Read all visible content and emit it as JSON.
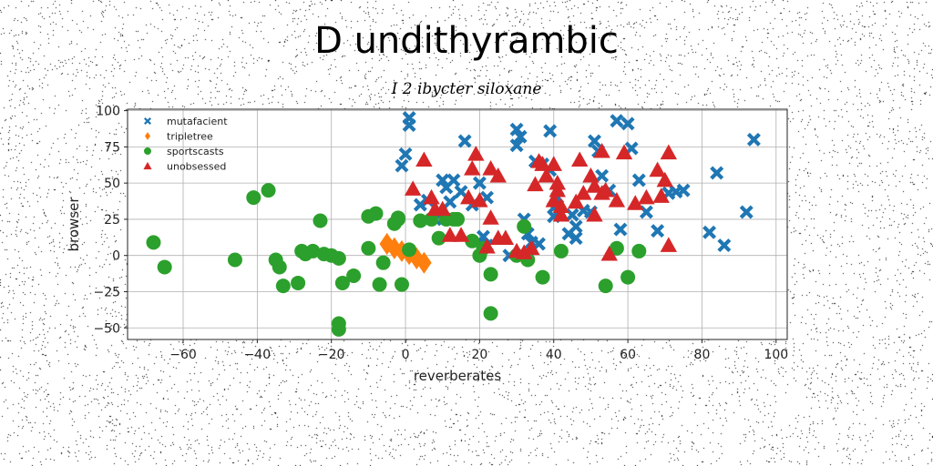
{
  "title": "D undithyrambic",
  "subtitle": "I 2 ibycter siloxane",
  "chart_data": {
    "type": "scatter",
    "xlabel": "reverberates",
    "ylabel": "browser",
    "xlim": [
      -75,
      103
    ],
    "ylim": [
      -58,
      101
    ],
    "xticks": [
      -60,
      -40,
      -20,
      0,
      20,
      40,
      60,
      80,
      100
    ],
    "yticks": [
      100,
      75,
      50,
      25,
      0,
      -25,
      -50
    ],
    "xtick_labels": [
      "−60",
      "−40",
      "−20",
      "0",
      "20",
      "40",
      "60",
      "80",
      "100"
    ],
    "ytick_labels": [
      "100",
      "75",
      "50",
      "25",
      "0",
      "−25",
      "−50"
    ],
    "grid": true,
    "legend_position": "top-left",
    "series": [
      {
        "name": "mutafacient",
        "color": "#1f77b4",
        "marker": "x",
        "points": [
          [
            1,
            95
          ],
          [
            1,
            90
          ],
          [
            0,
            70
          ],
          [
            -1,
            62
          ],
          [
            4,
            35
          ],
          [
            6,
            38
          ],
          [
            8,
            25
          ],
          [
            10,
            52
          ],
          [
            11,
            47
          ],
          [
            13,
            52
          ],
          [
            12,
            37
          ],
          [
            16,
            79
          ],
          [
            15,
            44
          ],
          [
            20,
            50
          ],
          [
            22,
            40
          ],
          [
            18,
            35
          ],
          [
            21,
            13
          ],
          [
            22,
            7
          ],
          [
            28,
            0
          ],
          [
            30,
            87
          ],
          [
            31,
            82
          ],
          [
            30,
            76
          ],
          [
            32,
            25
          ],
          [
            33,
            15
          ],
          [
            34,
            9
          ],
          [
            36,
            8
          ],
          [
            35,
            65
          ],
          [
            37,
            63
          ],
          [
            39,
            59
          ],
          [
            39,
            86
          ],
          [
            40,
            33
          ],
          [
            40,
            27
          ],
          [
            41,
            40
          ],
          [
            44,
            15
          ],
          [
            45,
            28
          ],
          [
            46,
            20
          ],
          [
            46,
            12
          ],
          [
            48,
            31
          ],
          [
            51,
            79
          ],
          [
            52,
            72
          ],
          [
            53,
            55
          ],
          [
            55,
            45
          ],
          [
            57,
            93
          ],
          [
            58,
            18
          ],
          [
            60,
            91
          ],
          [
            61,
            74
          ],
          [
            63,
            52
          ],
          [
            65,
            30
          ],
          [
            68,
            17
          ],
          [
            71,
            43
          ],
          [
            73,
            44
          ],
          [
            75,
            45
          ],
          [
            82,
            16
          ],
          [
            84,
            57
          ],
          [
            86,
            7
          ],
          [
            92,
            30
          ],
          [
            94,
            80
          ],
          [
            50,
            30
          ]
        ]
      },
      {
        "name": "tripletree",
        "color": "#ff7f0e",
        "marker": "diamond",
        "points": [
          [
            -5,
            8
          ],
          [
            -3,
            5
          ],
          [
            -1,
            3
          ],
          [
            1,
            1
          ],
          [
            3,
            -2
          ],
          [
            5,
            -5
          ]
        ]
      },
      {
        "name": "sportscasts",
        "color": "#2ca02c",
        "marker": "circle",
        "points": [
          [
            -68,
            9
          ],
          [
            -65,
            -8
          ],
          [
            -46,
            -3
          ],
          [
            -41,
            40
          ],
          [
            -37,
            45
          ],
          [
            -35,
            -3
          ],
          [
            -34,
            -8
          ],
          [
            -33,
            -21
          ],
          [
            -29,
            -19
          ],
          [
            -28,
            3
          ],
          [
            -27,
            1
          ],
          [
            -25,
            3
          ],
          [
            -23,
            24
          ],
          [
            -22,
            1
          ],
          [
            -20,
            0
          ],
          [
            -18,
            -2
          ],
          [
            -17,
            -19
          ],
          [
            -18,
            -47
          ],
          [
            -18,
            -51
          ],
          [
            -14,
            -14
          ],
          [
            -10,
            5
          ],
          [
            -10,
            27
          ],
          [
            -8,
            29
          ],
          [
            -7,
            -20
          ],
          [
            -6,
            -5
          ],
          [
            -3,
            22
          ],
          [
            -2,
            25
          ],
          [
            -2,
            26
          ],
          [
            -1,
            -20
          ],
          [
            1,
            4
          ],
          [
            4,
            24
          ],
          [
            7,
            25
          ],
          [
            9,
            12
          ],
          [
            11,
            25
          ],
          [
            13,
            25
          ],
          [
            14,
            25
          ],
          [
            18,
            10
          ],
          [
            20,
            0
          ],
          [
            21,
            5
          ],
          [
            23,
            -13
          ],
          [
            23,
            -40
          ],
          [
            30,
            0
          ],
          [
            32,
            20
          ],
          [
            33,
            -3
          ],
          [
            37,
            -15
          ],
          [
            42,
            3
          ],
          [
            54,
            -21
          ],
          [
            57,
            5
          ],
          [
            60,
            -15
          ],
          [
            63,
            3
          ]
        ]
      },
      {
        "name": "unobsessed",
        "color": "#d62728",
        "marker": "triangle",
        "points": [
          [
            2,
            46
          ],
          [
            5,
            66
          ],
          [
            7,
            40
          ],
          [
            8,
            32
          ],
          [
            10,
            32
          ],
          [
            12,
            14
          ],
          [
            15,
            14
          ],
          [
            17,
            40
          ],
          [
            18,
            60
          ],
          [
            19,
            70
          ],
          [
            20,
            38
          ],
          [
            22,
            6
          ],
          [
            23,
            60
          ],
          [
            23,
            26
          ],
          [
            25,
            55
          ],
          [
            25,
            12
          ],
          [
            27,
            12
          ],
          [
            30,
            3
          ],
          [
            32,
            2
          ],
          [
            34,
            5
          ],
          [
            35,
            49
          ],
          [
            36,
            65
          ],
          [
            37,
            63
          ],
          [
            38,
            55
          ],
          [
            40,
            38
          ],
          [
            41,
            50
          ],
          [
            41,
            45
          ],
          [
            42,
            34
          ],
          [
            40,
            63
          ],
          [
            42,
            28
          ],
          [
            46,
            37
          ],
          [
            47,
            66
          ],
          [
            48,
            43
          ],
          [
            50,
            55
          ],
          [
            51,
            28
          ],
          [
            51,
            48
          ],
          [
            53,
            72
          ],
          [
            53,
            43
          ],
          [
            54,
            45
          ],
          [
            55,
            1
          ],
          [
            57,
            38
          ],
          [
            59,
            71
          ],
          [
            62,
            36
          ],
          [
            65,
            40
          ],
          [
            68,
            59
          ],
          [
            69,
            41
          ],
          [
            70,
            52
          ],
          [
            71,
            7
          ],
          [
            71,
            71
          ]
        ]
      }
    ]
  }
}
